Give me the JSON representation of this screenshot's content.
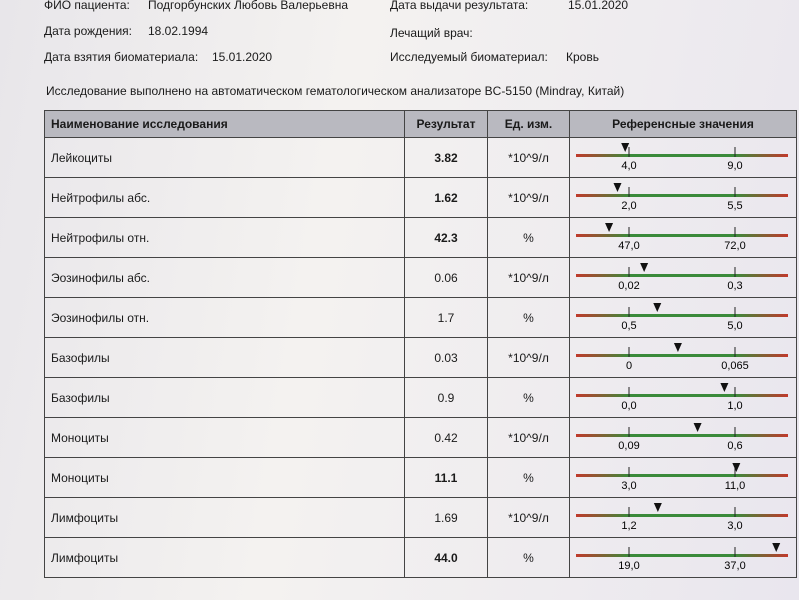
{
  "header": {
    "patient_label": "ФИО пациента:",
    "patient": "Подгорбунских Любовь Валерьевна",
    "issue_label": "Дата выдачи результата:",
    "issue_date": "15.01.2020",
    "birth_label": "Дата рождения:",
    "birth_date": "18.02.1994",
    "doctor_label": "Лечащий врач:",
    "sample_label": "Дата взятия биоматериала:",
    "sample_date": "15.01.2020",
    "material_label": "Исследуемый биоматериал:",
    "material": "Кровь",
    "note": "Исследование выполнено на автоматическом гематологическом анализаторе BC-5150 (Mindray, Китай)"
  },
  "table": {
    "columns": [
      "Наименование исследования",
      "Результат",
      "Ед. изм.",
      "Референсные значения"
    ],
    "rows": [
      [
        "Лейкоциты",
        "3.82",
        "*10^9/л",
        "4,0",
        "9,0"
      ],
      [
        "Нейтрофилы абс.",
        "1.62",
        "*10^9/л",
        "2,0",
        "5,5"
      ],
      [
        "Нейтрофилы отн.",
        "42.3",
        "%",
        "47,0",
        "72,0"
      ],
      [
        "Эозинофилы абс.",
        "0.06",
        "*10^9/л",
        "0,02",
        "0,3"
      ],
      [
        "Эозинофилы отн.",
        "1.7",
        "%",
        "0,5",
        "5,0"
      ],
      [
        "Базофилы",
        "0.03",
        "*10^9/л",
        "0",
        "0,065"
      ],
      [
        "Базофилы",
        "0.9",
        "%",
        "0,0",
        "1,0"
      ],
      [
        "Моноциты",
        "0.42",
        "*10^9/л",
        "0,09",
        "0,6"
      ],
      [
        "Моноциты",
        "11.1",
        "%",
        "3,0",
        "11,0"
      ],
      [
        "Лимфоциты",
        "1.69",
        "*10^9/л",
        "1,2",
        "3,0"
      ],
      [
        "Лимфоциты",
        "44.0",
        "%",
        "19,0",
        "37,0"
      ]
    ]
  }
}
